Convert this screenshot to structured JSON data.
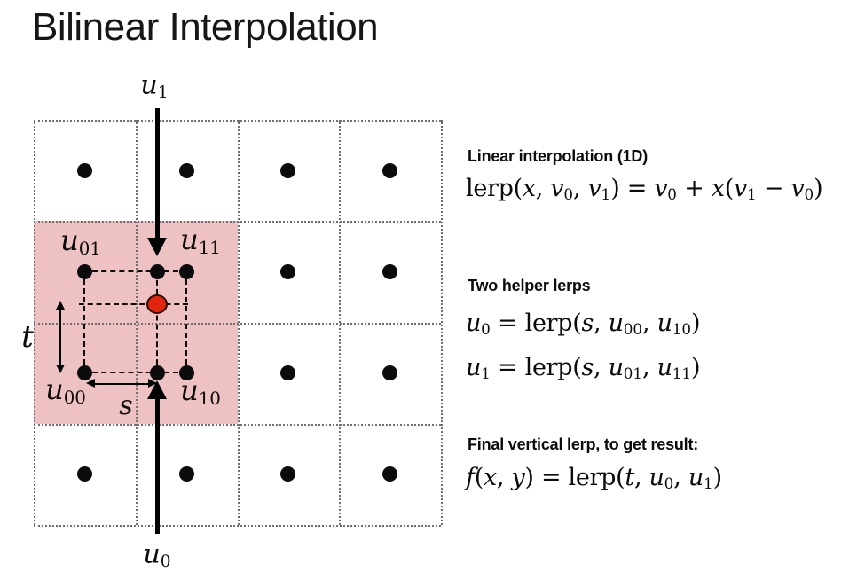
{
  "title": "Bilinear Interpolation",
  "colors": {
    "background": "#ffffff",
    "highlight_fill": "#eec2c2",
    "sample_point_fill": "#e2250e",
    "grid_line": "#6e6e6e",
    "ink": "#0b0b0b"
  },
  "diagram": {
    "grid": {
      "rows": 4,
      "cols": 4
    },
    "labels": {
      "u1": [
        {
          "t": "u",
          "s": "it"
        },
        {
          "t": "1",
          "s": "sub"
        }
      ],
      "u0": [
        {
          "t": "u",
          "s": "it"
        },
        {
          "t": "0",
          "s": "sub"
        }
      ],
      "u01": [
        {
          "t": "u",
          "s": "it"
        },
        {
          "t": "01",
          "s": "sub"
        }
      ],
      "u11": [
        {
          "t": "u",
          "s": "it"
        },
        {
          "t": "11",
          "s": "sub"
        }
      ],
      "u00": [
        {
          "t": "u",
          "s": "it"
        },
        {
          "t": "00",
          "s": "sub"
        }
      ],
      "u10": [
        {
          "t": "u",
          "s": "it"
        },
        {
          "t": "10",
          "s": "sub"
        }
      ],
      "t": [
        {
          "t": "t",
          "s": "it"
        }
      ],
      "s": [
        {
          "t": "s",
          "s": "it"
        }
      ]
    }
  },
  "panel": {
    "sections": [
      {
        "heading": "Linear interpolation (1D)",
        "formulas": [
          [
            {
              "t": "lerp(",
              "s": "rm"
            },
            {
              "t": "x",
              "s": "it"
            },
            {
              "t": ", ",
              "s": "rm"
            },
            {
              "t": "v",
              "s": "it"
            },
            {
              "t": "0",
              "s": "sub"
            },
            {
              "t": ", ",
              "s": "rm"
            },
            {
              "t": "v",
              "s": "it"
            },
            {
              "t": "1",
              "s": "sub"
            },
            {
              "t": ") = ",
              "s": "rm"
            },
            {
              "t": "v",
              "s": "it"
            },
            {
              "t": "0",
              "s": "sub"
            },
            {
              "t": " + ",
              "s": "rm"
            },
            {
              "t": "x",
              "s": "it"
            },
            {
              "t": "(",
              "s": "rm"
            },
            {
              "t": "v",
              "s": "it"
            },
            {
              "t": "1",
              "s": "sub"
            },
            {
              "t": " − ",
              "s": "rm"
            },
            {
              "t": "v",
              "s": "it"
            },
            {
              "t": "0",
              "s": "sub"
            },
            {
              "t": ")",
              "s": "rm"
            }
          ]
        ]
      },
      {
        "heading": "Two helper lerps",
        "formulas": [
          [
            {
              "t": "u",
              "s": "it"
            },
            {
              "t": "0",
              "s": "sub"
            },
            {
              "t": " = lerp(",
              "s": "rm"
            },
            {
              "t": "s",
              "s": "it"
            },
            {
              "t": ", ",
              "s": "rm"
            },
            {
              "t": "u",
              "s": "it"
            },
            {
              "t": "00",
              "s": "sub"
            },
            {
              "t": ", ",
              "s": "rm"
            },
            {
              "t": "u",
              "s": "it"
            },
            {
              "t": "10",
              "s": "sub"
            },
            {
              "t": ")",
              "s": "rm"
            }
          ],
          [
            {
              "t": "u",
              "s": "it"
            },
            {
              "t": "1",
              "s": "sub"
            },
            {
              "t": " = lerp(",
              "s": "rm"
            },
            {
              "t": "s",
              "s": "it"
            },
            {
              "t": ", ",
              "s": "rm"
            },
            {
              "t": "u",
              "s": "it"
            },
            {
              "t": "01",
              "s": "sub"
            },
            {
              "t": ", ",
              "s": "rm"
            },
            {
              "t": "u",
              "s": "it"
            },
            {
              "t": "11",
              "s": "sub"
            },
            {
              "t": ")",
              "s": "rm"
            }
          ]
        ]
      },
      {
        "heading": "Final vertical lerp, to get result:",
        "formulas": [
          [
            {
              "t": "f",
              "s": "it"
            },
            {
              "t": "(",
              "s": "rm"
            },
            {
              "t": "x",
              "s": "it"
            },
            {
              "t": ", ",
              "s": "rm"
            },
            {
              "t": "y",
              "s": "it"
            },
            {
              "t": ") = lerp(",
              "s": "rm"
            },
            {
              "t": "t",
              "s": "it"
            },
            {
              "t": ", ",
              "s": "rm"
            },
            {
              "t": "u",
              "s": "it"
            },
            {
              "t": "0",
              "s": "sub"
            },
            {
              "t": ", ",
              "s": "rm"
            },
            {
              "t": "u",
              "s": "it"
            },
            {
              "t": "1",
              "s": "sub"
            },
            {
              "t": ")",
              "s": "rm"
            }
          ]
        ]
      }
    ]
  }
}
